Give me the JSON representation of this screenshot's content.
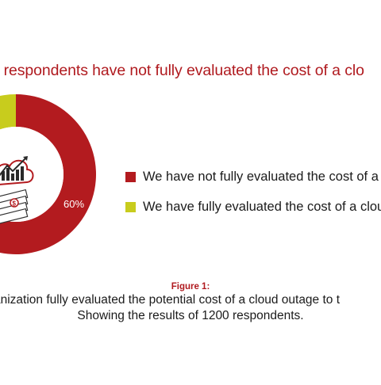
{
  "headline": "f respondents have not fully evaluated the cost of a clo",
  "chart_data": {
    "type": "pie",
    "style": "donut",
    "series": [
      {
        "label": "We have not fully evaluated the cost of a",
        "value": 60,
        "value_label": "60%",
        "color": "#b31b1f"
      },
      {
        "label": "We have fully evaluated the cost of a clou",
        "value": 40,
        "color": "#c8cc1d"
      }
    ],
    "center_icon": "cloud-growth-chart-money-icon"
  },
  "legend": {
    "items": [
      {
        "label": "We have not fully evaluated the cost of a",
        "color": "#b31b1f"
      },
      {
        "label": "We have fully evaluated the cost of a clou",
        "color": "#c8cc1d"
      }
    ]
  },
  "caption": {
    "figure_label": "Figure 1:",
    "line1": "anization fully evaluated the potential cost of a cloud outage to t",
    "line2": "Showing the results of 1200 respondents."
  }
}
